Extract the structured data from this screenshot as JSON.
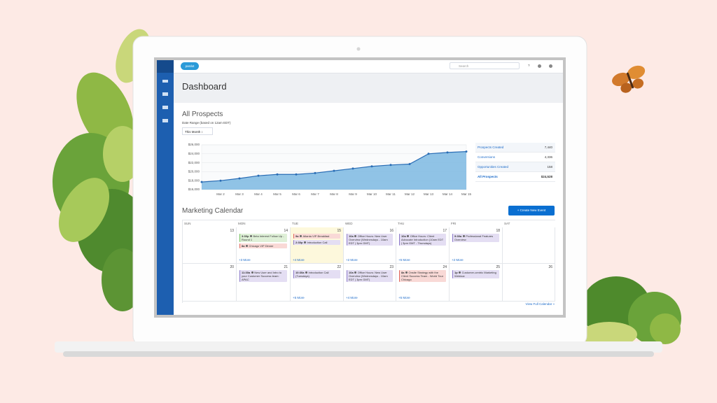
{
  "topbar": {
    "logo": "pardot",
    "search_placeholder": "Search"
  },
  "page_title": "Dashboard",
  "prospects": {
    "title": "All Prospects",
    "date_range_label": "Date Range (based on 12am EDT)",
    "date_range": "This Month"
  },
  "chart_data": {
    "type": "area",
    "categories": [
      null,
      "Mar 2",
      "Mar 3",
      "Mar 4",
      "Mar 5",
      "Mar 6",
      "Mar 7",
      "Mar 8",
      "Mar 9",
      "Mar 10",
      "Mar 11",
      "Mar 12",
      "Mar 13",
      "Mar 14",
      "Mar 15"
    ],
    "values": [
      17700,
      18000,
      18500,
      19100,
      19400,
      19400,
      19700,
      20200,
      20700,
      21200,
      21500,
      21700,
      24000,
      24300,
      24500
    ],
    "color": "#2a6db5",
    "fill": "#7db8e2",
    "ylim": [
      16000,
      26000
    ],
    "yticks": [
      {
        "value": 16000,
        "label": "$16,000"
      },
      {
        "value": 18000,
        "label": "$18,000"
      },
      {
        "value": 20000,
        "label": "$20,000"
      },
      {
        "value": 22000,
        "label": "$22,000"
      },
      {
        "value": 24000,
        "label": "$24,000"
      },
      {
        "value": 26000,
        "label": "$26,000"
      }
    ],
    "grid": true
  },
  "stats": [
    {
      "label": "Prospects Created",
      "value": "7,440"
    },
    {
      "label": "Conversions",
      "value": "4,336"
    },
    {
      "label": "Opportunities Created",
      "value": "158"
    },
    {
      "label": "All Prospects",
      "value": "$24,528"
    }
  ],
  "calendar": {
    "title": "Marketing Calendar",
    "button": "+ Create New Event",
    "days": [
      "SUN",
      "MON",
      "TUE",
      "WED",
      "THU",
      "FRI",
      "SAT"
    ],
    "weeks": [
      [
        {
          "date": 13,
          "events": []
        },
        {
          "date": 14,
          "events": [
            {
              "time": "3:30p",
              "title": "Beta Interest Follow Up - Round 1",
              "color": "green"
            },
            {
              "time": "8a",
              "title": "Chicago VIP Dinner",
              "color": "red"
            }
          ],
          "more": "+3 More"
        },
        {
          "date": 15,
          "today": true,
          "events": [
            {
              "time": "9a",
              "title": "Atlanta VIP Breakfast",
              "color": "red"
            },
            {
              "time": "2:30p",
              "title": "Introduction Call",
              "color": "purple"
            }
          ],
          "more": "+4 More"
        },
        {
          "date": 16,
          "events": [
            {
              "time": "10a",
              "title": "Office Hours: New User Overview (Wednesdays - 10am EDT | 3pm GMT)",
              "color": "purple"
            }
          ],
          "more": "+2 More"
        },
        {
          "date": 17,
          "events": [
            {
              "time": "10a",
              "title": "Office Hours: Client Advocate Introduction (10am EDT | 3pm GMT - Thursdays)",
              "color": "purple"
            }
          ],
          "more": "+5 More"
        },
        {
          "date": 18,
          "events": [
            {
              "time": "9:30a",
              "title": "Professional Features Overview",
              "color": "purple"
            }
          ],
          "more": "+2 More"
        },
        {
          "events": []
        }
      ],
      [
        {
          "date": 20,
          "events": []
        },
        {
          "date": 21,
          "events": [
            {
              "time": "11:30a",
              "title": "New User and Intro to your Customer Success team: APAC",
              "color": "purple"
            }
          ]
        },
        {
          "date": 22,
          "events": [
            {
              "time": "10:30a",
              "title": "Introduction Call (Tuesdays)",
              "color": "purple"
            }
          ],
          "more": "+5 More"
        },
        {
          "date": 23,
          "events": [
            {
              "time": "10a",
              "title": "Office Hours: New User Overview (Wednesdays - 10am EDT | 3pm GMT)",
              "color": "purple"
            }
          ],
          "more": "+4 More"
        },
        {
          "date": 24,
          "events": [
            {
              "time": "8a",
              "title": "Onsite Strategy with the Client Success Team - World Tour Chicago",
              "color": "red"
            }
          ],
          "more": "+5 More"
        },
        {
          "date": 25,
          "events": [
            {
              "time": "1p",
              "title": "Customer-centric Marketing Webinar",
              "color": "purple"
            }
          ]
        },
        {
          "date": 26,
          "events": []
        }
      ]
    ],
    "link": "View Full Calendar »"
  }
}
